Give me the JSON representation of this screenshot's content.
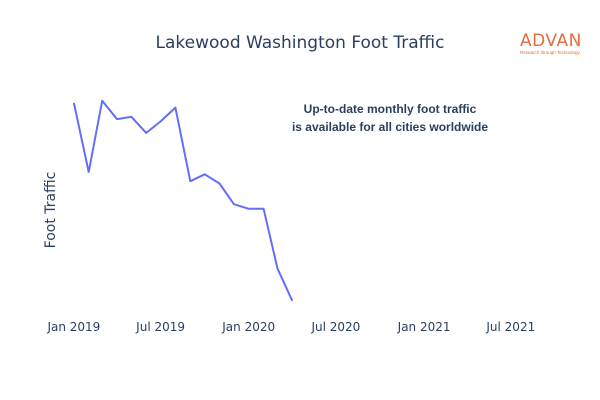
{
  "chart_data": {
    "type": "line",
    "title": "Lakewood Washington Foot Traffic",
    "xlabel": "",
    "ylabel": "Foot Traffic",
    "annotation": [
      "Up-to-date monthly foot traffic",
      "is available for all cities worldwide"
    ],
    "x_ticks": [
      "Jan 2019",
      "Jul 2019",
      "Jan 2020",
      "Jul 2020",
      "Jan 2021",
      "Jul 2021"
    ],
    "x_range": [
      "2018-12-03",
      "2021-08-31"
    ],
    "y_range": [
      0,
      100
    ],
    "y_ticks_visible": false,
    "grid": false,
    "line_color": "#636efa",
    "series": [
      {
        "name": "",
        "x": [
          "2019-01-01",
          "2019-02-01",
          "2019-03-01",
          "2019-04-01",
          "2019-05-01",
          "2019-06-01",
          "2019-07-01",
          "2019-08-01",
          "2019-09-01",
          "2019-10-01",
          "2019-11-01",
          "2019-12-01",
          "2020-01-01",
          "2020-02-01",
          "2020-03-01",
          "2020-04-01"
        ],
        "values": [
          90,
          60,
          91,
          83,
          84,
          77,
          82,
          88,
          56,
          59,
          55,
          46,
          44,
          44,
          18,
          4
        ]
      }
    ]
  },
  "logo": {
    "name": "ADVAN",
    "tagline": "Research through Technology"
  }
}
